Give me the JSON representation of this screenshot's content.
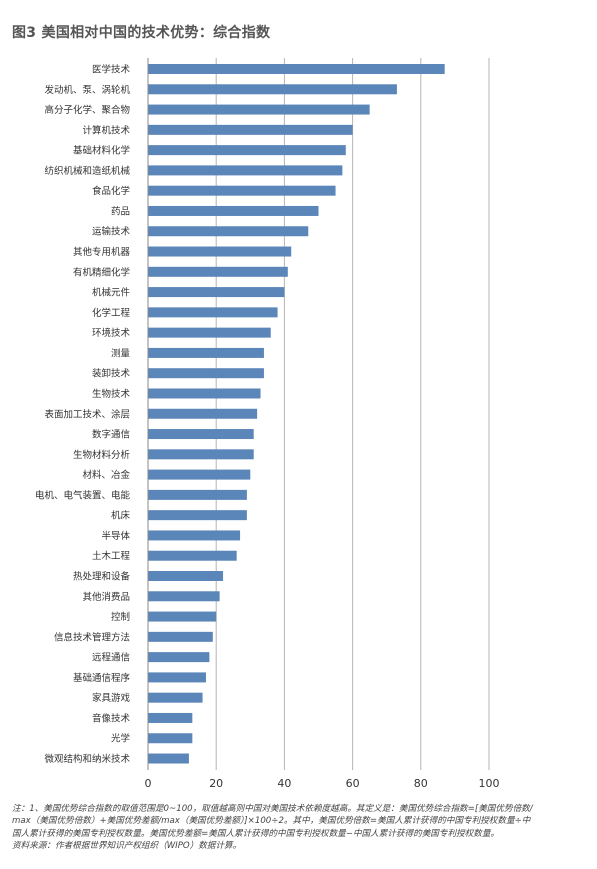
{
  "title": "图3 美国相对中国的技术优势：综合指数",
  "notes": [
    "注：1、美国优势综合指数的取值范围是0~100，取值越高则中国对美国技术依赖度越高。其定义是：美国优势综合指数=[美国优势倍数/",
    "max（美国优势倍数）+美国优势差额/max（美国优势差额）]×100÷2。其中，美国优势倍数=美国人累计获得的中国专利授权数量÷中",
    "国人累计获得的美国专利授权数量。美国优势差额=美国人累计获得的中国专利授权数量−中国人累计获得的美国专利授权数量。",
    "资料来源：作者根据世界知识产权组织（WIPO）数据计算。"
  ],
  "chart_data": {
    "type": "bar",
    "orientation": "horizontal",
    "categories": [
      "医学技术",
      "发动机、泵、涡轮机",
      "高分子化学、聚合物",
      "计算机技术",
      "基础材料化学",
      "纺织机械和造纸机械",
      "食品化学",
      "药品",
      "运输技术",
      "其他专用机器",
      "有机精细化学",
      "机械元件",
      "化学工程",
      "环境技术",
      "测量",
      "装卸技术",
      "生物技术",
      "表面加工技术、涂层",
      "数字通信",
      "生物材料分析",
      "材料、冶金",
      "电机、电气装置、电能",
      "机床",
      "半导体",
      "土木工程",
      "热处理和设备",
      "其他消费品",
      "控制",
      "信息技术管理方法",
      "远程通信",
      "基础通信程序",
      "家具游戏",
      "音像技术",
      "光学",
      "微观结构和纳米技术"
    ],
    "values": [
      87,
      73,
      65,
      60,
      58,
      57,
      55,
      50,
      47,
      42,
      41,
      40,
      38,
      36,
      34,
      34,
      33,
      32,
      31,
      31,
      30,
      29,
      29,
      27,
      26,
      22,
      21,
      20,
      19,
      18,
      17,
      16,
      13,
      13,
      12
    ],
    "x_ticks": [
      "0",
      "20",
      "40",
      "60",
      "80",
      "100"
    ],
    "xlim": [
      0,
      100
    ],
    "grid": "vertical",
    "bar_color": "#5b86b9",
    "grid_color": "#b5b5b5"
  }
}
